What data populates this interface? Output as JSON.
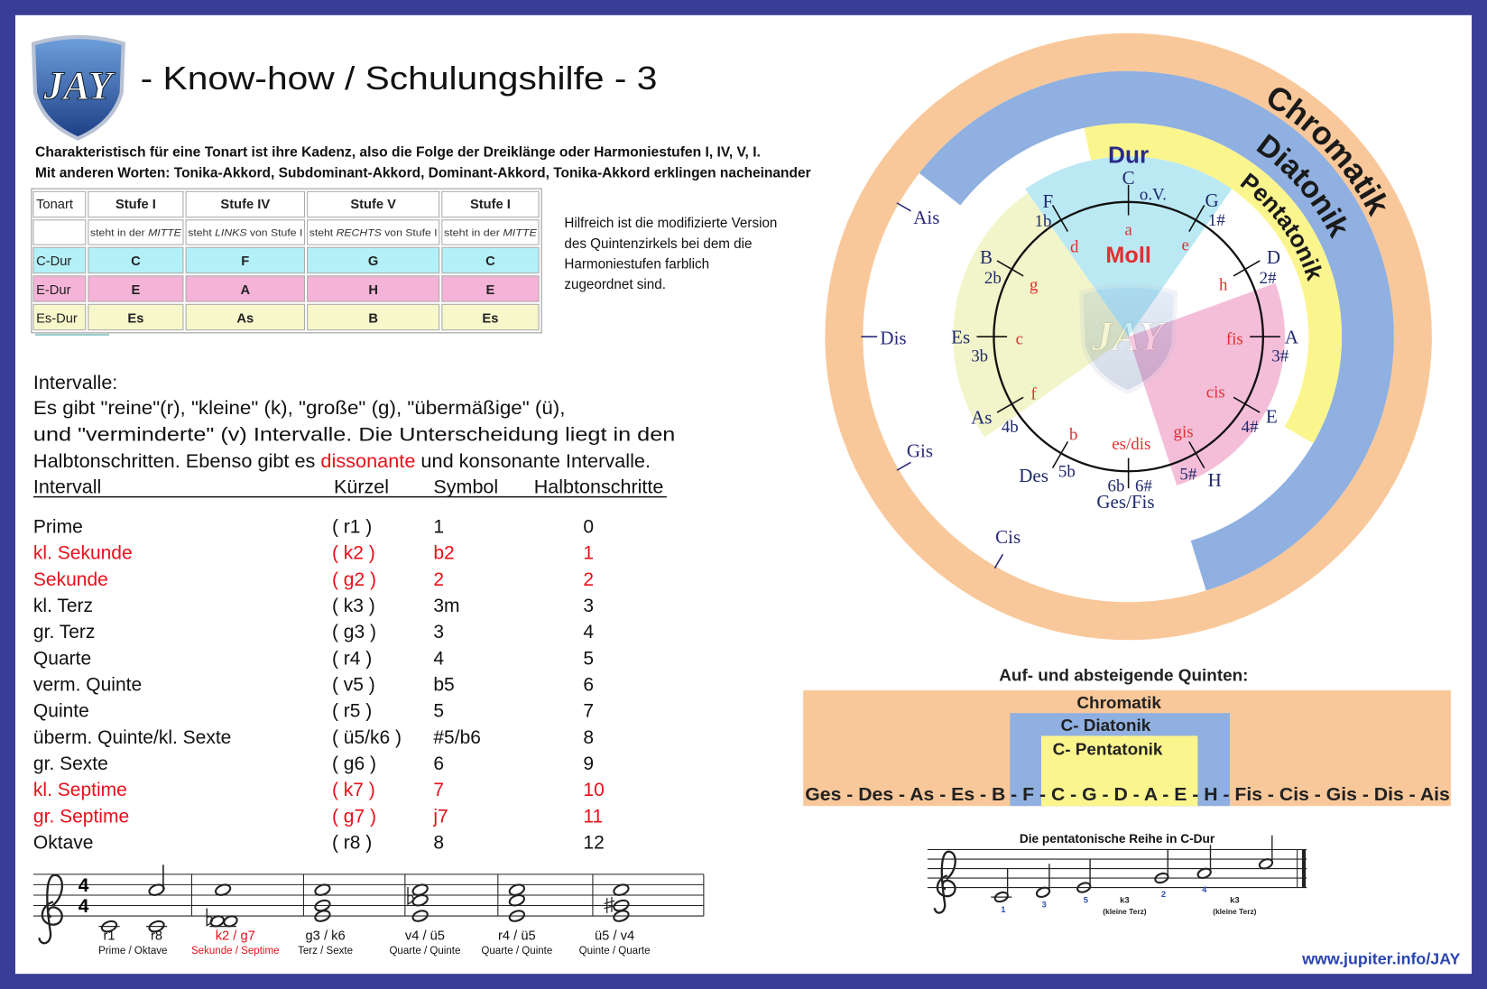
{
  "header": {
    "logo": "JAY",
    "title": "- Know-how / Schulungshilfe - 3"
  },
  "intro": [
    "Charakteristisch für eine Tonart ist ihre Kadenz, also die Folge der Dreiklänge oder Harmoniestufen  I, IV, V, I.",
    "Mit anderen Worten: Tonika-Akkord, Subdominant-Akkord, Dominant-Akkord, Tonika-Akkord erklingen nacheinander"
  ],
  "table": {
    "header": [
      "Tonart",
      "Stufe I",
      "Stufe IV",
      "Stufe V",
      "Stufe I"
    ],
    "notes": [
      [
        "steht in der ",
        "MITTE"
      ],
      [
        "steht ",
        "LINKS",
        " von Stufe I"
      ],
      [
        "steht ",
        "RECHTS",
        " von Stufe I"
      ],
      [
        "steht in der ",
        "MITTE"
      ]
    ],
    "rows": [
      {
        "key": "C-Dur",
        "color": "#b3f0f7",
        "chords": [
          "C",
          "F",
          "G",
          "C"
        ]
      },
      {
        "key": "E-Dur",
        "color": "#f5b3d7",
        "chords": [
          "E",
          "A",
          "H",
          "E"
        ]
      },
      {
        "key": "Es-Dur",
        "color": "#f7f7cc",
        "chords": [
          "Es",
          "As",
          "B",
          "Es"
        ]
      }
    ]
  },
  "note": [
    "Hilfreich ist die modifizierte Version",
    "des Quintenzirkels bei dem die",
    "Harmoniestufen farblich",
    "zugeordnet sind."
  ],
  "intervals": {
    "heading": "Intervalle:",
    "highlight": "#e8101a",
    "paragraph": [
      "Es gibt \"reine\"(r), \"kleine\" (k), \"große\" (g), \"übermäßige\" (ü),",
      "und \"verminderte\" (v) Intervalle. Die Unterscheidung liegt in den",
      [
        "Halbtonschritten. Ebenso gibt es ",
        "dissonante",
        " und konsonante Intervalle."
      ]
    ],
    "columns": [
      "Intervall",
      "Kürzel",
      "Symbol",
      "Halbtonschritte"
    ],
    "rows": [
      {
        "name": "Prime",
        "abbr": "( r1 )",
        "symbol": "1",
        "steps": 0,
        "highlight": false
      },
      {
        "name": "kl. Sekunde",
        "abbr": "( k2 )",
        "symbol": "b2",
        "steps": 1,
        "highlight": true
      },
      {
        "name": "Sekunde",
        "abbr": "( g2  )",
        "symbol": "2",
        "steps": 2,
        "highlight": true
      },
      {
        "name": "kl. Terz",
        "abbr": "( k3 )",
        "symbol": "3m",
        "steps": 3,
        "highlight": false
      },
      {
        "name": "gr. Terz",
        "abbr": "( g3 )",
        "symbol": "3",
        "steps": 4,
        "highlight": false
      },
      {
        "name": "Quarte",
        "abbr": "( r4  )",
        "symbol": "4",
        "steps": 5,
        "highlight": false
      },
      {
        "name": "verm. Quinte",
        "abbr": "( v5 )",
        "symbol": "b5",
        "steps": 6,
        "highlight": false
      },
      {
        "name": "Quinte",
        "abbr": "( r5  )",
        "symbol": "5",
        "steps": 7,
        "highlight": false
      },
      {
        "name": "überm. Quinte/kl. Sexte",
        "abbr": "( ü5/k6 )",
        "symbol": "#5/b6",
        "steps": 8,
        "highlight": false
      },
      {
        "name": "gr. Sexte",
        "abbr": "( g6 )",
        "symbol": "6",
        "steps": 9,
        "highlight": false
      },
      {
        "name": "kl. Septime",
        "abbr": "( k7 )",
        "symbol": "7",
        "steps": 10,
        "highlight": true
      },
      {
        "name": "gr. Septime",
        "abbr": "( g7 )",
        "symbol": "j7",
        "steps": 11,
        "highlight": true
      },
      {
        "name": "Oktave",
        "abbr": "( r8 )",
        "symbol": "8",
        "steps": 12,
        "highlight": false
      }
    ]
  },
  "staff": {
    "time": [
      "4",
      "4"
    ],
    "groups": [
      {
        "labels": [
          "r1",
          "r8"
        ],
        "caption": "Prime / Oktave",
        "highlight": false
      },
      {
        "labels": [
          "k2 / g7"
        ],
        "caption": "Sekunde / Septime",
        "highlight": true
      },
      {
        "labels": [
          "g3 / k6"
        ],
        "caption": "Terz / Sexte",
        "highlight": false
      },
      {
        "labels": [
          "v4 / ü5"
        ],
        "caption": "Quarte / Quinte",
        "highlight": false
      },
      {
        "labels": [
          "r4 / ü5"
        ],
        "caption": "Quarte / Quinte",
        "highlight": false
      },
      {
        "labels": [
          "ü5 / v4"
        ],
        "caption": "Quinte / Quarte",
        "highlight": false
      }
    ]
  },
  "circle": {
    "rings": [
      "Chromatik",
      "Diatonik",
      "Pentatonik"
    ],
    "dur": "Dur",
    "moll": "Moll",
    "keys": [
      {
        "major": "C",
        "sign": "o.V.",
        "minor": "a"
      },
      {
        "major": "G",
        "sign": "1#",
        "minor": "e"
      },
      {
        "major": "D",
        "sign": "2#",
        "minor": "h"
      },
      {
        "major": "A",
        "sign": "3#",
        "minor": "fis"
      },
      {
        "major": "E",
        "sign": "4#",
        "minor": "cis"
      },
      {
        "major": "H",
        "sign": "5#",
        "minor": "gis"
      },
      {
        "major": "Ges/Fis",
        "sign": [
          "6b",
          "6#"
        ],
        "minor": "es/dis"
      },
      {
        "major": "Des",
        "sign": "5b",
        "minor": "b"
      },
      {
        "major": "As",
        "sign": "4b",
        "minor": "f"
      },
      {
        "major": "Es",
        "sign": "3b",
        "minor": "c"
      },
      {
        "major": "B",
        "sign": "2b",
        "minor": "g"
      },
      {
        "major": "F",
        "sign": "1b",
        "minor": "d"
      }
    ],
    "outer": [
      "Ais",
      "Dis",
      "Gis",
      "Cis"
    ]
  },
  "fifths": {
    "title": "Auf- und absteigende Quinten:",
    "levels": [
      "Chromatik",
      "C- Diatonik",
      "C- Pentatonik"
    ],
    "sequence": "Ges - Des - As - Es - B - F - C - G - D - A - E - H - Fis - Cis - Gis - Dis - Ais"
  },
  "pentatonic": {
    "title": "Die pentatonische Reihe in C-Dur",
    "degrees": [
      1,
      3,
      5,
      2,
      4
    ],
    "intervals": [
      {
        "label": "k3",
        "note": "(kleine Terz)"
      },
      {
        "label": "k3",
        "note": "(kleine Terz)"
      }
    ]
  },
  "footer": {
    "url": "www.jupiter.info/JAY"
  }
}
